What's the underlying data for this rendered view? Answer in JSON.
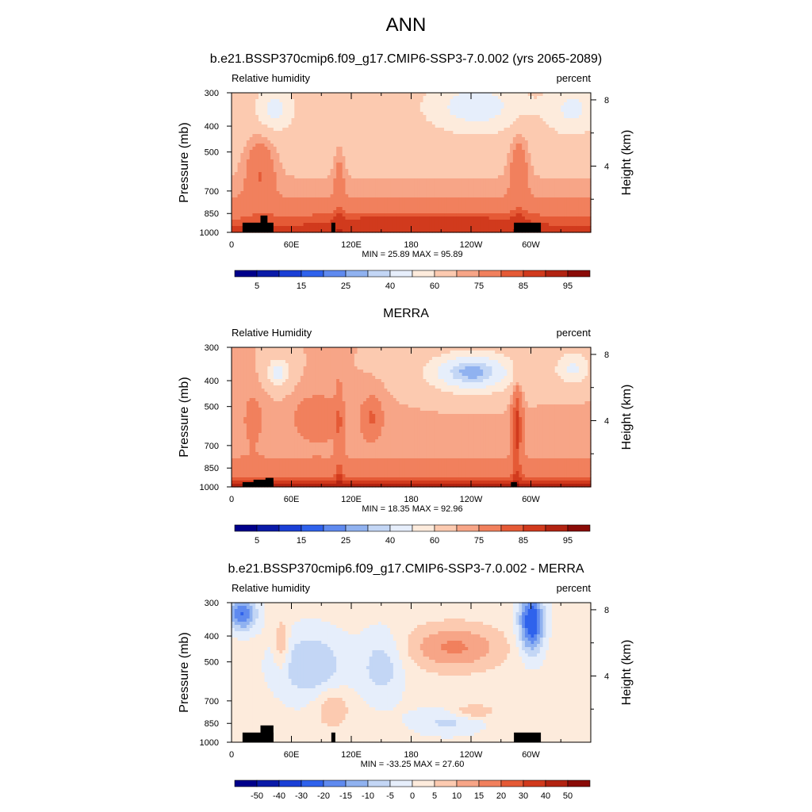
{
  "page_title": "ANN",
  "colors": {
    "rh_scale": [
      "#00008b",
      "#0a1aa8",
      "#1a3fd6",
      "#2f62ec",
      "#5f8aef",
      "#90b2f0",
      "#c3d6f5",
      "#e6eefb",
      "#fdebdc",
      "#fccab0",
      "#f7a587",
      "#f1805d",
      "#e55a36",
      "#d13a1d",
      "#b22311",
      "#8a0b07"
    ],
    "diff_scale": [
      "#00008b",
      "#0a1aa8",
      "#1a3fd6",
      "#2f62ec",
      "#5f8aef",
      "#90b2f0",
      "#c3d6f5",
      "#e6eefb",
      "#fdebdc",
      "#fccab0",
      "#f7a587",
      "#f1805d",
      "#e55a36",
      "#d13a1d",
      "#b22311",
      "#8a0b07"
    ],
    "terrain": "#000000"
  },
  "chart_data": [
    {
      "type": "heatmap",
      "title": "b.e21.BSSP370cmip6.f09_g17.CMIP6-SSP3-7.0.002 (yrs 2065-2089)",
      "left_label": "Relative humidity",
      "right_label": "percent",
      "ylabel": "Pressure (mb)",
      "y2label": "Height (km)",
      "xticks": [
        "0",
        "60E",
        "120E",
        "180",
        "120W",
        "60W"
      ],
      "yticks": [
        "300",
        "400",
        "500",
        "700",
        "850",
        "1000"
      ],
      "y2ticks": [
        "8",
        "4"
      ],
      "min_max_text": "MIN =  25.89  MAX =  95.89",
      "colorbar_labels": [
        "5",
        "15",
        "25",
        "40",
        "60",
        "75",
        "85",
        "95"
      ],
      "x_range": [
        0,
        360
      ],
      "p_range": [
        300,
        1000
      ],
      "min": 25.89,
      "max": 95.89,
      "scale": "rh"
    },
    {
      "type": "heatmap",
      "title": "MERRA",
      "left_label": "Relative Humidity",
      "right_label": "percent",
      "ylabel": "Pressure (mb)",
      "y2label": "Height (km)",
      "xticks": [
        "0",
        "60E",
        "120E",
        "180",
        "120W",
        "60W"
      ],
      "yticks": [
        "300",
        "400",
        "500",
        "700",
        "850",
        "1000"
      ],
      "y2ticks": [
        "8",
        "4"
      ],
      "min_max_text": "MIN =  18.35  MAX =  92.96",
      "colorbar_labels": [
        "5",
        "15",
        "25",
        "40",
        "60",
        "75",
        "85",
        "95"
      ],
      "x_range": [
        0,
        360
      ],
      "p_range": [
        300,
        1000
      ],
      "min": 18.35,
      "max": 92.96,
      "scale": "rh"
    },
    {
      "type": "heatmap",
      "title": "b.e21.BSSP370cmip6.f09_g17.CMIP6-SSP3-7.0.002 - MERRA",
      "left_label": "Relative humidity",
      "right_label": "percent",
      "ylabel": "Pressure (mb)",
      "y2label": "Height (km)",
      "xticks": [
        "0",
        "60E",
        "120E",
        "180",
        "120W",
        "60W"
      ],
      "yticks": [
        "300",
        "400",
        "500",
        "700",
        "850",
        "1000"
      ],
      "y2ticks": [
        "8",
        "4"
      ],
      "min_max_text": "MIN = -33.25  MAX =  27.60",
      "colorbar_labels": [
        "-50",
        "-40",
        "-30",
        "-20",
        "-15",
        "-10",
        "-5",
        "0",
        "5",
        "10",
        "15",
        "20",
        "30",
        "40",
        "50"
      ],
      "x_range": [
        0,
        360
      ],
      "p_range": [
        300,
        1000
      ],
      "min": -33.25,
      "max": 27.6,
      "scale": "diff"
    }
  ]
}
